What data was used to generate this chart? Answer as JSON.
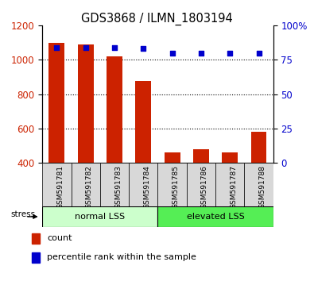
{
  "title": "GDS3868 / ILMN_1803194",
  "categories": [
    "GSM591781",
    "GSM591782",
    "GSM591783",
    "GSM591784",
    "GSM591785",
    "GSM591786",
    "GSM591787",
    "GSM591788"
  ],
  "bar_values": [
    1100,
    1090,
    1020,
    875,
    460,
    480,
    460,
    580
  ],
  "percentile_values": [
    84,
    84,
    84,
    83,
    80,
    80,
    80,
    80
  ],
  "bar_color": "#cc2200",
  "dot_color": "#0000cc",
  "left_ylim": [
    400,
    1200
  ],
  "right_ylim": [
    0,
    100
  ],
  "left_yticks": [
    400,
    600,
    800,
    1000,
    1200
  ],
  "right_yticks": [
    0,
    25,
    50,
    75,
    100
  ],
  "right_yticklabels": [
    "0",
    "25",
    "50",
    "75",
    "100%"
  ],
  "grid_values": [
    600,
    800,
    1000
  ],
  "group1_label": "normal LSS",
  "group2_label": "elevated LSS",
  "group1_color": "#ccffcc",
  "group2_color": "#55ee55",
  "stress_label": "stress",
  "legend_bar_label": "count",
  "legend_dot_label": "percentile rank within the sample",
  "bar_width": 0.55,
  "tick_bg_color": "#d8d8d8",
  "fig_width": 3.95,
  "fig_height": 3.54,
  "group1_indices": [
    0,
    1,
    2,
    3
  ],
  "group2_indices": [
    4,
    5,
    6,
    7
  ]
}
